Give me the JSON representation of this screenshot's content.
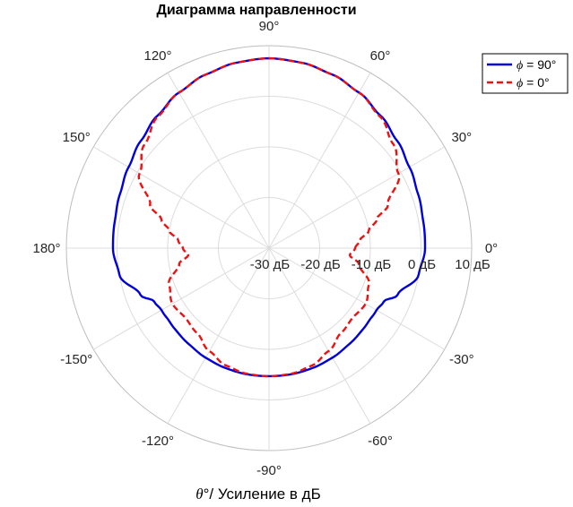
{
  "chart_data": {
    "type": "polar-line",
    "title": "Диаграмма направленности",
    "xlabel": "θ°/ Усиление в дБ",
    "xlabel_symbol": "θ",
    "xlabel_rest": "°/ Усиление в дБ",
    "angle_unit": "deg",
    "radial_unit": "dB",
    "rlim": [
      -30,
      10
    ],
    "radial_ticks": [
      -30,
      -20,
      -10,
      0,
      10
    ],
    "radial_tick_labels": [
      "-30 дБ",
      "-20 дБ",
      "-10 дБ",
      "0 дБ",
      "10 дБ"
    ],
    "angle_ticks": [
      0,
      30,
      60,
      90,
      120,
      150,
      180,
      -150,
      -120,
      -90,
      -60,
      -30
    ],
    "angle_tick_labels": [
      "0°",
      "30°",
      "60°",
      "90°",
      "120°",
      "150°",
      "180°",
      "-150°",
      "-120°",
      "-90°",
      "-60°",
      "-30°"
    ],
    "grid": true,
    "legend_position": "top-right",
    "legend_symbol": "ϕ",
    "series": [
      {
        "name": "ϕ = 90°",
        "label_suffix": " = 90°",
        "color": "#0000dd",
        "dash": "solid",
        "theta": [
          0,
          10,
          20,
          30,
          40,
          50,
          60,
          70,
          80,
          90,
          100,
          110,
          120,
          130,
          140,
          150,
          160,
          170,
          180,
          190,
          200,
          205,
          210,
          212,
          215,
          220,
          230,
          240,
          250,
          260,
          270,
          280,
          290,
          300,
          310,
          320,
          325,
          328,
          330,
          335,
          340,
          350,
          360
        ],
        "r": [
          0.8,
          0.9,
          1.3,
          2.0,
          3.0,
          4.2,
          5.5,
          6.5,
          7.2,
          7.5,
          7.2,
          6.5,
          5.5,
          4.2,
          3.0,
          2.0,
          1.3,
          0.9,
          0.8,
          0.0,
          -3.0,
          -5.0,
          -5.5,
          -5.5,
          -5.6,
          -5.5,
          -5.3,
          -5.0,
          -4.8,
          -4.7,
          -4.7,
          -4.7,
          -4.8,
          -5.0,
          -5.3,
          -5.5,
          -5.6,
          -5.5,
          -5.5,
          -5.0,
          -3.0,
          0.0,
          0.8
        ]
      },
      {
        "name": "ϕ = 0°",
        "label_suffix": " = 0°",
        "color": "#ee1111",
        "dash": "dashed",
        "theta": [
          0,
          5,
          10,
          15,
          20,
          30,
          40,
          50,
          60,
          70,
          80,
          90,
          100,
          110,
          120,
          130,
          140,
          150,
          160,
          165,
          170,
          175,
          180,
          185,
          190,
          200,
          210,
          220,
          230,
          240,
          250,
          260,
          270,
          280,
          290,
          300,
          310,
          320,
          330,
          340,
          350,
          355,
          360
        ],
        "r": [
          -13.0,
          -12.0,
          -10.0,
          -8.0,
          -5.0,
          -0.5,
          2.0,
          4.0,
          5.5,
          6.5,
          7.2,
          7.5,
          7.2,
          6.5,
          5.5,
          4.0,
          2.0,
          -0.5,
          -5.0,
          -8.0,
          -10.0,
          -12.0,
          -13.0,
          -14.0,
          -12.0,
          -9.0,
          -8.0,
          -8.5,
          -8.0,
          -6.5,
          -5.3,
          -4.8,
          -4.7,
          -4.8,
          -5.3,
          -6.5,
          -8.0,
          -8.5,
          -8.0,
          -9.0,
          -12.0,
          -14.0,
          -13.0
        ]
      }
    ]
  }
}
